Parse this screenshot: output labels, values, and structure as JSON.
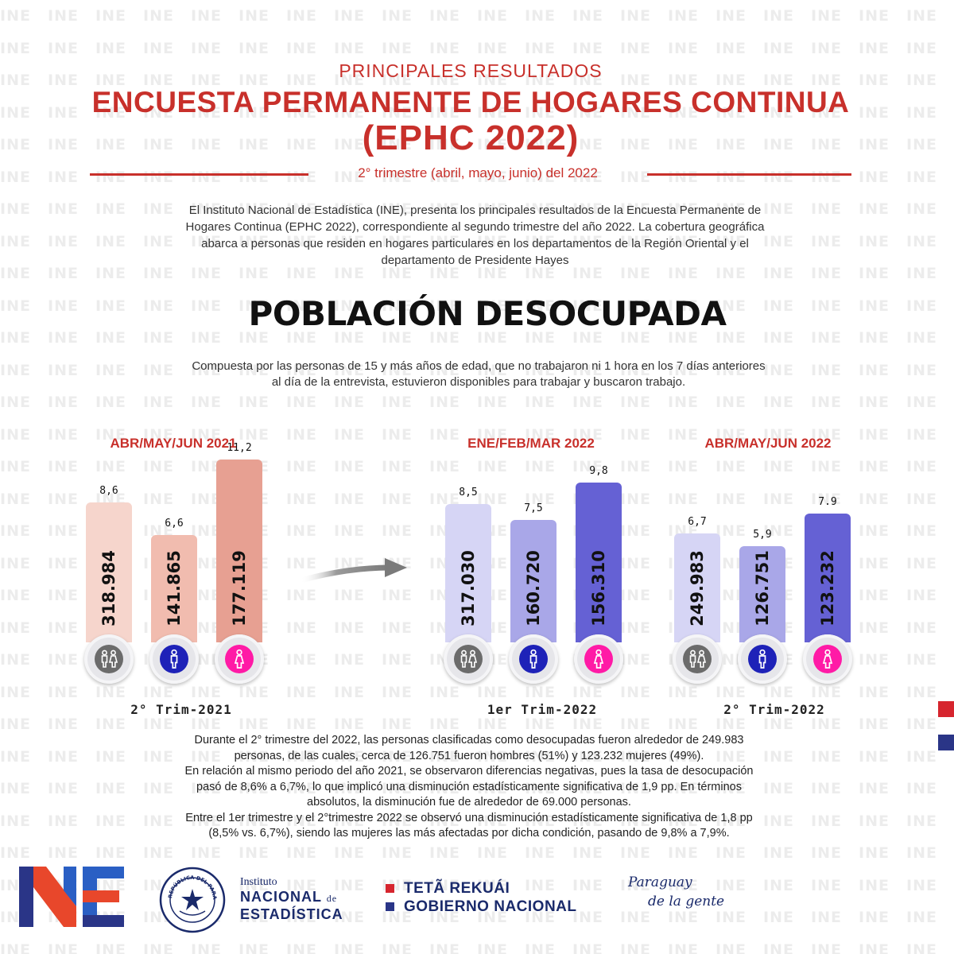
{
  "watermark_text": "INE",
  "header": {
    "kicker": "PRINCIPALES RESULTADOS",
    "title_line1": "ENCUESTA PERMANENTE DE HOGARES CONTINUA",
    "title_line2": "(EPHC 2022)",
    "period": "2° trimestre  (abril, mayo, junio) del 2022"
  },
  "intro": {
    "line1": "El Instituto Nacional de Estadística (INE), presenta los principales resultados de la Encuesta Permanente de",
    "line2": "Hogares Continua (EPHC 2022), correspondiente al segundo trimestre del año 2022.  La cobertura geográfica",
    "line3": "abarca a personas que residen en hogares particulares en los departamentos de la Región Oriental y el",
    "line4": "departamento de Presidente Hayes"
  },
  "section": {
    "title": "POBLACIÓN DESOCUPADA",
    "definition_line1": "Compuesta por las personas de 15 y más años de edad,  que no trabajaron ni 1 hora en los 7 días anteriores",
    "definition_line2": "al día de la entrevista, estuvieron disponibles para trabajar y buscaron trabajo."
  },
  "chart_data": {
    "type": "bar",
    "categories": [
      "Total",
      "Hombres",
      "Mujeres"
    ],
    "icons": [
      "people-icon",
      "man-icon",
      "woman-icon"
    ],
    "panels": [
      {
        "title": "ABR/MAY/JUN 2021",
        "caption": "2° Trim-2021",
        "rate_labels": [
          "8,6",
          "6,6",
          "11,2"
        ],
        "rates": [
          8.6,
          6.6,
          11.2
        ],
        "count_labels": [
          "318.984",
          "141.865",
          "177.119"
        ],
        "counts": [
          318984,
          141865,
          177119
        ],
        "colors": [
          "#f6d5cc",
          "#f1bcaf",
          "#e7a092"
        ]
      },
      {
        "title": "ENE/FEB/MAR 2022",
        "caption": "1er Trim-2022",
        "rate_labels": [
          "8,5",
          "7,5",
          "9,8"
        ],
        "rates": [
          8.5,
          7.5,
          9.8
        ],
        "count_labels": [
          "317.030",
          "160.720",
          "156.310"
        ],
        "counts": [
          317030,
          160720,
          156310
        ],
        "colors": [
          "#d6d5f5",
          "#a9a7e8",
          "#6561d4"
        ]
      },
      {
        "title": "ABR/MAY/JUN 2022",
        "caption": "2° Trim-2022",
        "rate_labels": [
          "6,7",
          "5,9",
          "7.9"
        ],
        "rates": [
          6.7,
          5.9,
          7.9
        ],
        "count_labels": [
          "249.983",
          "126.751",
          "123.232"
        ],
        "counts": [
          249983,
          126751,
          123232
        ],
        "colors": [
          "#d6d5f5",
          "#a9a7e8",
          "#6561d4"
        ]
      }
    ],
    "badge_colors": [
      "#6b6b6b",
      "#1e22b8",
      "#ff1aa6"
    ]
  },
  "summary": {
    "line1": "Durante el 2° trimestre del 2022, las personas clasificadas como desocupadas fueron alrededor de 249.983",
    "line2": "personas, de las cuales, cerca de 126.751 fueron hombres (51%) y 123.232 mujeres (49%).",
    "line3": "En relación al mismo periodo del año 2021,  se observaron diferencias negativas, pues la tasa de desocupación",
    "line4": "pasó de 8,6% a 6,7%, lo que implicó una disminución estadísticamente significativa de 1,9 pp. En términos",
    "line5": "absolutos, la disminución fue de alrededor de 69.000 personas.",
    "line6": "Entre el 1er trimestre y el 2°trimestre 2022 se observó una disminución estadísticamente significativa de 1,8 pp",
    "line7": "(8,5% vs. 6,7%), siendo las mujeres las más afectadas por dicha condición, pasando de 9,8% a 7,9%."
  },
  "footer": {
    "logo_text": "INE",
    "seal_text": "REPÚBLICA DEL PARAGUAY",
    "institute_small": "Instituto",
    "institute_line1": "NACIONAL",
    "institute_de": "de",
    "institute_line2": "ESTADÍSTICA",
    "gov_line1": "TETÃ REKUÁI",
    "gov_line2": "GOBIERNO NACIONAL",
    "slogan_line1": "Paraguay",
    "slogan_line2": "de la gente",
    "colors": {
      "brand_red": "#c8302b",
      "brand_navy": "#1a2a6b",
      "flag_red": "#d6252e",
      "flag_blue": "#2a3587"
    }
  }
}
